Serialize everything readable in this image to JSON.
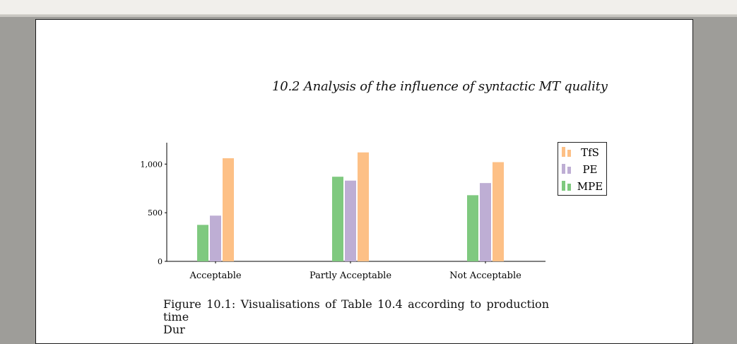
{
  "viewer": {
    "toolbar": ""
  },
  "header": {
    "running_title": "10.2  Analysis of the influence of syntactic MT quality"
  },
  "caption": {
    "line1": "Figure 10.1: Visualisations of Table 10.4 according to production time",
    "line2": "Dur"
  },
  "chart_data": {
    "type": "bar",
    "categories": [
      "Acceptable",
      "Partly Acceptable",
      "Not Acceptable"
    ],
    "series": [
      {
        "name": "MPE",
        "values": [
          375,
          870,
          680
        ],
        "color": "#7fc97f"
      },
      {
        "name": "PE",
        "values": [
          470,
          830,
          805
        ],
        "color": "#beaed4"
      },
      {
        "name": "TfS",
        "values": [
          1060,
          1120,
          1020
        ],
        "color": "#fdc086"
      }
    ],
    "legend_order": [
      "TfS",
      "PE",
      "MPE"
    ],
    "y_ticks": [
      0,
      500,
      1000
    ],
    "y_tick_labels": [
      "0",
      "500",
      "1,000"
    ],
    "ylim": [
      0,
      1220
    ],
    "title": "",
    "xlabel": "",
    "ylabel": "",
    "legend_position": "outside-right-top",
    "grid": false
  }
}
